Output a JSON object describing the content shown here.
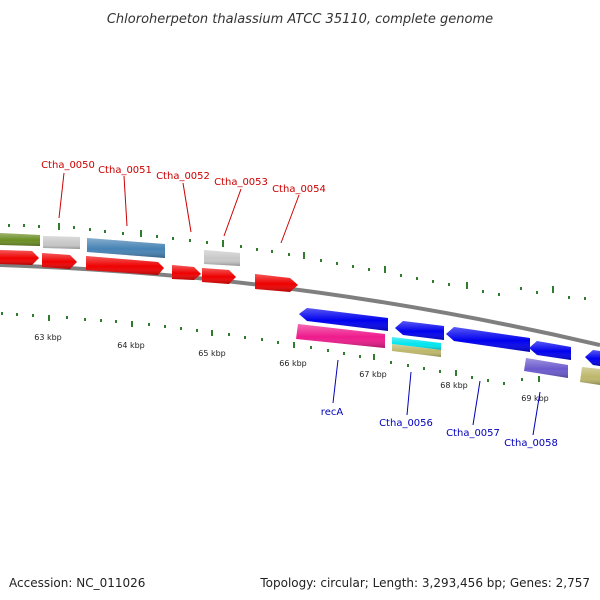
{
  "title": "Chloroherpeton thalassium ATCC 35110, complete genome",
  "footer": {
    "accession": "Accession: NC_011026",
    "stats": "Topology: circular; Length: 3,293,456 bp; Genes: 2,757"
  },
  "scale_labels": [
    "63 kbp",
    "64 kbp",
    "65 kbp",
    "66 kbp",
    "67 kbp",
    "68 kbp",
    "69 kbp"
  ],
  "gene_labels_top": [
    "Ctha_0050",
    "Ctha_0051",
    "Ctha_0052",
    "Ctha_0053",
    "Ctha_0054"
  ],
  "gene_labels_bottom": [
    "recA",
    "Ctha_0056",
    "Ctha_0057",
    "Ctha_0058"
  ],
  "colors": {
    "top_label": "#cc0000",
    "bottom_label": "#0000bb",
    "tick": "#2e7d2e",
    "backbone": "#808080"
  }
}
